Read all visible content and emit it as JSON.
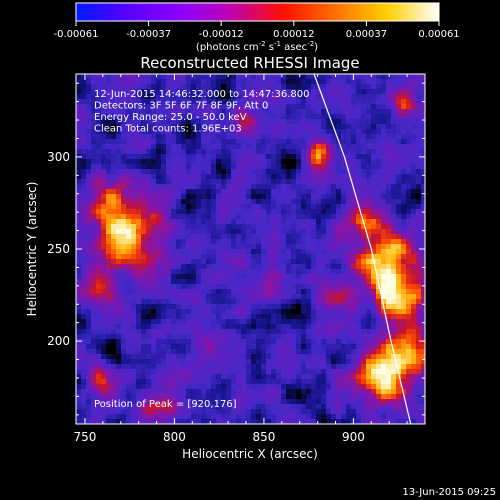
{
  "colorbar": {
    "ticks": [
      "-0.00061",
      "-0.00037",
      "-0.00012",
      "0.00012",
      "0.00037",
      "0.00061"
    ],
    "units_text": "(photons cm",
    "units_exp1": "-2",
    "units_mid": " s",
    "units_exp2": "-1",
    "units_end": " asec",
    "units_exp3": "-2",
    "units_close": ")",
    "colors": [
      "#0018ff",
      "#5a00ff",
      "#8a00ff",
      "#c000b0",
      "#ff1000",
      "#ff7000",
      "#ffd000",
      "#ffffff"
    ]
  },
  "chart_data": {
    "type": "heatmap",
    "title": "Reconstructed RHESSI Image",
    "xlabel": "Heliocentric X (arcsec)",
    "ylabel": "Heliocentric Y (arcsec)",
    "xlim": [
      745,
      940
    ],
    "ylim": [
      155,
      345
    ],
    "xticks": [
      "750",
      "800",
      "850",
      "900"
    ],
    "yticks": [
      "200",
      "250",
      "300"
    ],
    "annotations": [
      "12-Jun-2015 14:46:32.000 to 14:47:36.800",
      "Detectors: 3F 5F 6F 7F 8F 9F, Att 0",
      "Energy Range: 25.0 - 50.0 keV",
      "Clean     Total counts: 1.96E+03"
    ],
    "peak_label": "Position of Peak = [920,176]",
    "peak": [
      920,
      176
    ],
    "limb_curve": [
      [
        878,
        345
      ],
      [
        895,
        300
      ],
      [
        910,
        250
      ],
      [
        921,
        200
      ],
      [
        932,
        155
      ]
    ],
    "hot_regions": [
      {
        "x": 775,
        "y": 256,
        "level": 0.85,
        "r": 18
      },
      {
        "x": 765,
        "y": 275,
        "level": 0.7,
        "r": 12
      },
      {
        "x": 758,
        "y": 230,
        "level": 0.6,
        "r": 10
      },
      {
        "x": 918,
        "y": 245,
        "level": 0.85,
        "r": 16
      },
      {
        "x": 925,
        "y": 225,
        "level": 0.9,
        "r": 14
      },
      {
        "x": 915,
        "y": 180,
        "level": 1.0,
        "r": 14
      },
      {
        "x": 930,
        "y": 195,
        "level": 0.95,
        "r": 12
      },
      {
        "x": 905,
        "y": 265,
        "level": 0.6,
        "r": 10
      },
      {
        "x": 880,
        "y": 300,
        "level": 0.7,
        "r": 8
      },
      {
        "x": 842,
        "y": 318,
        "level": 0.55,
        "r": 8
      },
      {
        "x": 890,
        "y": 225,
        "level": 0.5,
        "r": 10
      },
      {
        "x": 848,
        "y": 232,
        "level": 0.45,
        "r": 10
      },
      {
        "x": 790,
        "y": 165,
        "level": 0.55,
        "r": 10
      },
      {
        "x": 760,
        "y": 178,
        "level": 0.5,
        "r": 8
      },
      {
        "x": 820,
        "y": 200,
        "level": 0.45,
        "r": 8
      },
      {
        "x": 930,
        "y": 330,
        "level": 0.4,
        "r": 8
      }
    ]
  },
  "footer": {
    "timestamp": "13-Jun-2015 09:25"
  }
}
